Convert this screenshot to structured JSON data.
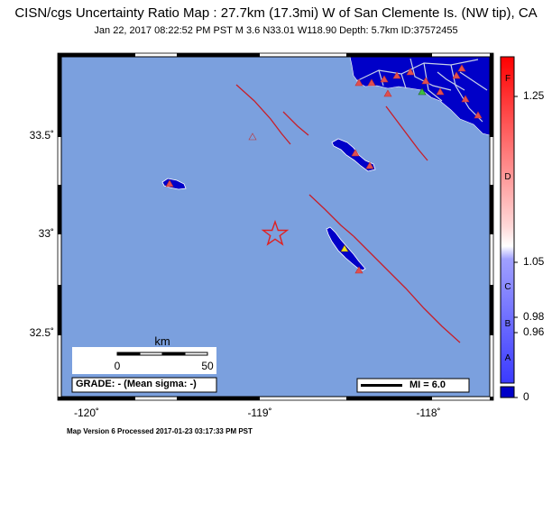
{
  "title": "CISN/cgs Uncertainty Ratio Map : 27.7km (17.3mi) W of San Clemente Is. (NW tip), CA",
  "subtitle": "Jan 22, 2017 08:22:52 PM PST   M 3.6   N33.01 W118.90   Depth: 5.7km   ID:37572455",
  "footer": "Map Version 6 Processed 2017-01-23 03:17:33 PM PST",
  "map": {
    "lat_labels": [
      "33.5˚",
      "33˚",
      "32.5˚"
    ],
    "lon_labels": [
      "-120˚",
      "-119˚",
      "-118˚"
    ],
    "ocean_color": "#7ba0de",
    "land_color": "#0000c8",
    "fault_color": "#c81e28",
    "epicenter_icon": "star-icon"
  },
  "scale_bar": {
    "unit": "km",
    "min": "0",
    "max": "50"
  },
  "grade": "GRADE: - (Mean sigma: -)",
  "mi_legend": "MI = 6.0",
  "colorbar": {
    "values": [
      "1.25",
      "1.05",
      "0.98",
      "0.96",
      "0"
    ],
    "letters": [
      "F",
      "D",
      "C",
      "B",
      "A"
    ]
  }
}
